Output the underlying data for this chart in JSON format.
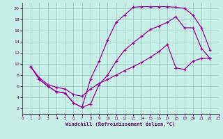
{
  "xlabel": "Windchill (Refroidissement éolien,°C)",
  "background_color": "#c8eee8",
  "grid_color": "#a0ccc0",
  "line_color": "#990099",
  "axis_bar_color": "#663366",
  "label_color": "#660066",
  "xlim": [
    0,
    23
  ],
  "ylim": [
    1,
    21
  ],
  "xticks": [
    0,
    1,
    2,
    3,
    4,
    5,
    6,
    7,
    8,
    9,
    10,
    11,
    12,
    13,
    14,
    15,
    16,
    17,
    18,
    19,
    20,
    21,
    22,
    23
  ],
  "yticks": [
    2,
    4,
    6,
    8,
    10,
    12,
    14,
    16,
    18,
    20
  ],
  "curve1_x": [
    1,
    2,
    3,
    4,
    5,
    6,
    7,
    8,
    9,
    10,
    11,
    12,
    13,
    14,
    15,
    16,
    17,
    18,
    19,
    20,
    21,
    22
  ],
  "curve1_y": [
    9.5,
    7.2,
    6.0,
    5.0,
    4.8,
    3.0,
    2.2,
    7.3,
    10.5,
    14.3,
    17.5,
    18.8,
    20.2,
    20.3,
    20.3,
    20.3,
    20.3,
    20.2,
    20.0,
    18.8,
    16.5,
    12.5
  ],
  "curve2_x": [
    1,
    2,
    3,
    4,
    5,
    6,
    7,
    8,
    9,
    10,
    11,
    12,
    13,
    14,
    15,
    16,
    17,
    18,
    19,
    20,
    21,
    22
  ],
  "curve2_y": [
    9.5,
    7.2,
    6.0,
    5.0,
    4.8,
    3.0,
    2.2,
    2.8,
    6.3,
    8.0,
    10.5,
    12.5,
    13.8,
    15.0,
    16.2,
    16.8,
    17.5,
    18.5,
    16.5,
    16.5,
    12.8,
    11.0
  ],
  "curve3_x": [
    1,
    2,
    3,
    4,
    5,
    6,
    7,
    8,
    9,
    10,
    11,
    12,
    13,
    14,
    15,
    16,
    17,
    18,
    19,
    20,
    21,
    22
  ],
  "curve3_y": [
    9.5,
    7.5,
    6.3,
    5.8,
    5.5,
    4.5,
    4.2,
    5.5,
    6.5,
    7.2,
    8.0,
    8.8,
    9.5,
    10.3,
    11.2,
    12.2,
    13.5,
    9.3,
    9.0,
    10.5,
    11.0,
    11.0
  ]
}
